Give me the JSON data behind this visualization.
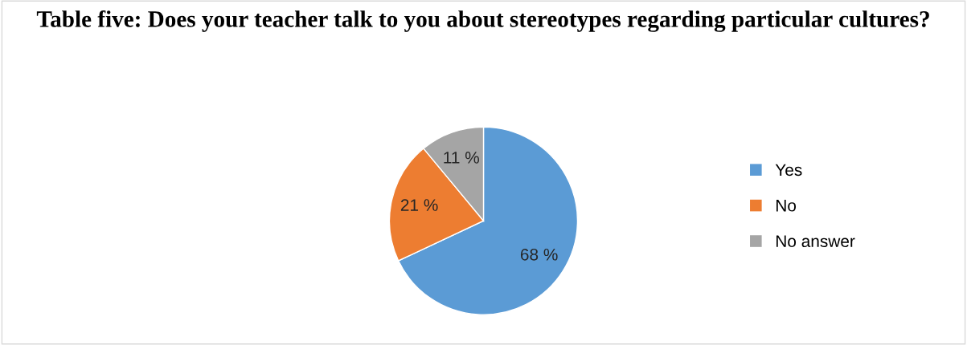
{
  "chart_data": {
    "type": "pie",
    "title": "Table five: Does your teacher talk to you about stereotypes regarding particular cultures?",
    "categories": [
      "Yes",
      "No",
      "No answer"
    ],
    "values": [
      68,
      21,
      11
    ],
    "colors": [
      "#5b9bd5",
      "#ed7d31",
      "#a5a5a5"
    ],
    "value_labels": [
      "68 %",
      "21 %",
      "11 %"
    ],
    "legend": "right"
  }
}
